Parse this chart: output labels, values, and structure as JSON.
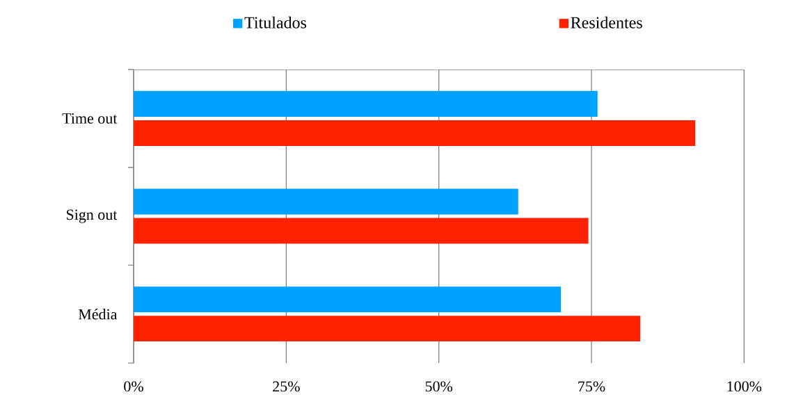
{
  "chart_data": {
    "type": "bar",
    "orientation": "horizontal",
    "categories": [
      "Time out",
      "Sign out",
      "Média"
    ],
    "series": [
      {
        "name": "Titulados",
        "color": "#00a2ff",
        "values": [
          76,
          63,
          70
        ]
      },
      {
        "name": "Residentes",
        "color": "#ff2200",
        "values": [
          92,
          74.5,
          83
        ]
      }
    ],
    "xlim": [
      0,
      100
    ],
    "xticks": [
      {
        "value": 0,
        "label": "0%"
      },
      {
        "value": 25,
        "label": "25%"
      },
      {
        "value": 50,
        "label": "50%"
      },
      {
        "value": 75,
        "label": "75%"
      },
      {
        "value": 100,
        "label": "100%"
      }
    ],
    "grid": "x",
    "legend": "top"
  }
}
